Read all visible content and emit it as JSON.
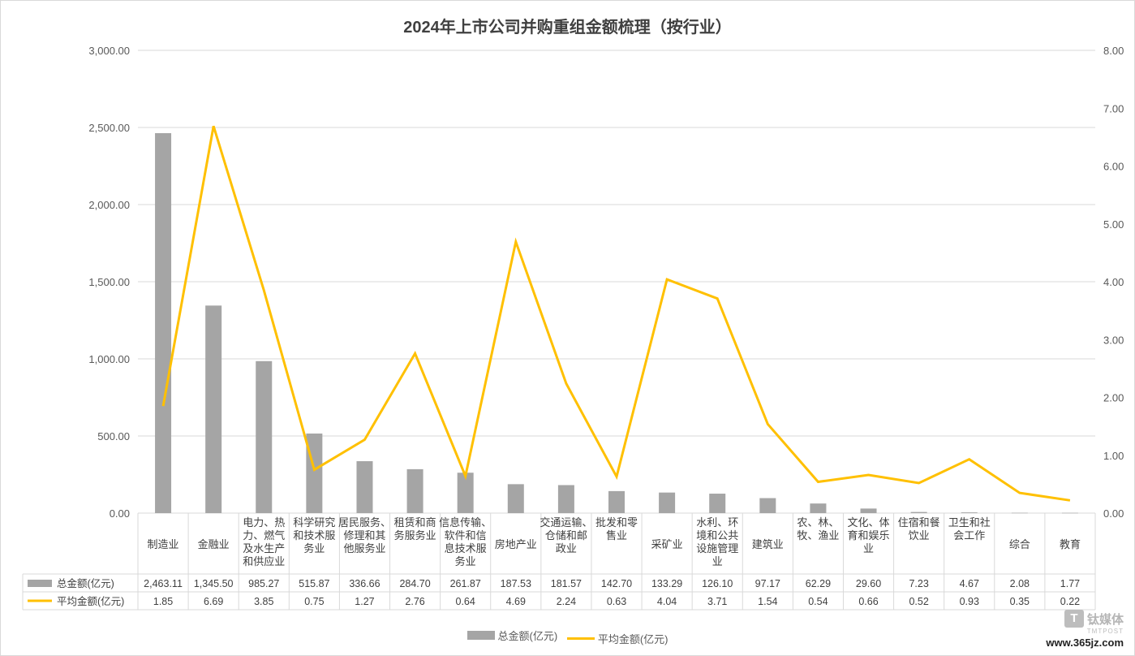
{
  "chart_data": {
    "type": "bar",
    "title": "2024年上市公司并购重组金额梳理（按行业）",
    "categories": [
      "制造业",
      "金融业",
      "电力、热力、燃气及水生产和供应业",
      "科学研究和技术服务业",
      "居民服务、修理和其他服务业",
      "租赁和商务服务业",
      "信息传输、软件和信息技术服务业",
      "房地产业",
      "交通运输、仓储和邮政业",
      "批发和零售业",
      "采矿业",
      "水利、环境和公共设施管理业",
      "建筑业",
      "农、林、牧、渔业",
      "文化、体育和娱乐业",
      "住宿和餐饮业",
      "卫生和社会工作",
      "综合",
      "教育"
    ],
    "category_lines": [
      [
        "制造业"
      ],
      [
        "金融业"
      ],
      [
        "电力、热",
        "力、燃气",
        "及水生产",
        "和供应业"
      ],
      [
        "科学研究",
        "和技术服",
        "务业"
      ],
      [
        "居民服务、",
        "修理和其",
        "他服务业"
      ],
      [
        "租赁和商",
        "务服务业"
      ],
      [
        "信息传输、",
        "软件和信",
        "息技术服",
        "务业"
      ],
      [
        "房地产业"
      ],
      [
        "交通运输、",
        "仓储和邮",
        "政业"
      ],
      [
        "批发和零",
        "售业"
      ],
      [
        "采矿业"
      ],
      [
        "水利、环",
        "境和公共",
        "设施管理",
        "业"
      ],
      [
        "建筑业"
      ],
      [
        "农、林、",
        "牧、渔业"
      ],
      [
        "文化、体",
        "育和娱乐",
        "业"
      ],
      [
        "住宿和餐",
        "饮业"
      ],
      [
        "卫生和社",
        "会工作"
      ],
      [
        "综合"
      ],
      [
        "教育"
      ]
    ],
    "series": [
      {
        "name": "总金额(亿元)",
        "type": "bar",
        "axis": "left",
        "color": "#a5a5a5",
        "values": [
          2463.11,
          1345.5,
          985.27,
          515.87,
          336.66,
          284.7,
          261.87,
          187.53,
          181.57,
          142.7,
          133.29,
          126.1,
          97.17,
          62.29,
          29.6,
          7.23,
          4.67,
          2.08,
          1.77
        ],
        "labels": [
          "2,463.11",
          "1,345.50",
          "985.27",
          "515.87",
          "336.66",
          "284.70",
          "261.87",
          "187.53",
          "181.57",
          "142.70",
          "133.29",
          "126.10",
          "97.17",
          "62.29",
          "29.60",
          "7.23",
          "4.67",
          "2.08",
          "1.77"
        ]
      },
      {
        "name": "平均金额(亿元)",
        "type": "line",
        "axis": "right",
        "color": "#ffc000",
        "values": [
          1.85,
          6.69,
          3.85,
          0.75,
          1.27,
          2.76,
          0.64,
          4.69,
          2.24,
          0.63,
          4.04,
          3.71,
          1.54,
          0.54,
          0.66,
          0.52,
          0.93,
          0.35,
          0.22
        ],
        "labels": [
          "1.85",
          "6.69",
          "3.85",
          "0.75",
          "1.27",
          "2.76",
          "0.64",
          "4.69",
          "2.24",
          "0.63",
          "4.04",
          "3.71",
          "1.54",
          "0.54",
          "0.66",
          "0.52",
          "0.93",
          "0.35",
          "0.22"
        ]
      }
    ],
    "y_left": {
      "min": 0,
      "max": 3000,
      "ticks": [
        "0.00",
        "500.00",
        "1,000.00",
        "1,500.00",
        "2,000.00",
        "2,500.00",
        "3,000.00"
      ]
    },
    "y_right": {
      "min": 0,
      "max": 8,
      "ticks": [
        "0.00",
        "1.00",
        "2.00",
        "3.00",
        "4.00",
        "5.00",
        "6.00",
        "7.00",
        "8.00"
      ]
    },
    "grid": true,
    "data_table": true,
    "legend": "bottom"
  },
  "watermark": {
    "brand": "钛媒体",
    "sub": "TMTPOST",
    "url": "www.365jz.com"
  }
}
